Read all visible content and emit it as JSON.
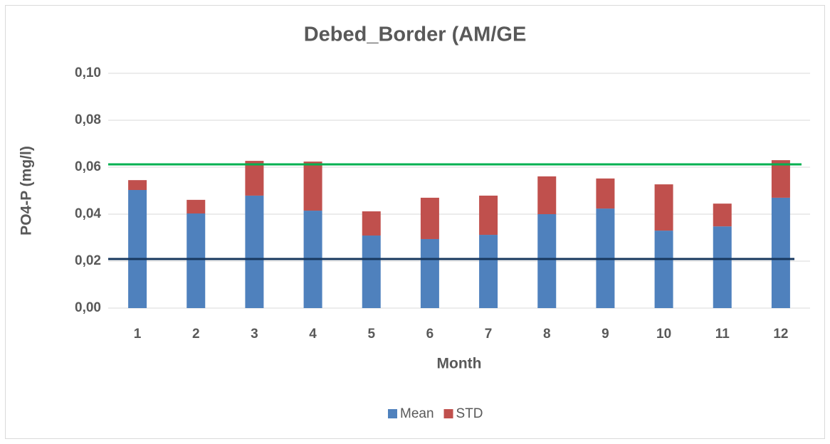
{
  "chart_data": {
    "type": "stacked_bar",
    "title": "Debed_Border (AM/GE",
    "x_label": "Month",
    "y_label": "PO4-P (mg/l)",
    "categories": [
      "1",
      "2",
      "3",
      "4",
      "5",
      "6",
      "7",
      "8",
      "9",
      "10",
      "11",
      "12"
    ],
    "series": [
      {
        "name": "Mean",
        "color": "#4f81bd",
        "values": [
          0.0503,
          0.0403,
          0.0479,
          0.0415,
          0.0309,
          0.0294,
          0.0312,
          0.04,
          0.0424,
          0.033,
          0.0348,
          0.047
        ]
      },
      {
        "name": "STD",
        "color": "#c0504d",
        "values": [
          0.0042,
          0.0058,
          0.0148,
          0.0209,
          0.0103,
          0.0176,
          0.0167,
          0.0161,
          0.0128,
          0.0197,
          0.0097,
          0.016
        ]
      }
    ],
    "reference_lines": [
      {
        "value": 0.0612,
        "color": "#00b050"
      },
      {
        "value": 0.0209,
        "color": "#17375e"
      }
    ],
    "ylim": [
      0,
      0.1
    ],
    "yticks": [
      {
        "value": 0,
        "label": "0,00"
      },
      {
        "value": 0.02,
        "label": "0,02"
      },
      {
        "value": 0.04,
        "label": "0,04"
      },
      {
        "value": 0.06,
        "label": "0,06"
      },
      {
        "value": 0.08,
        "label": "0,08"
      },
      {
        "value": 0.1,
        "label": "0,10"
      }
    ],
    "grid": true,
    "legend": "bottom"
  }
}
